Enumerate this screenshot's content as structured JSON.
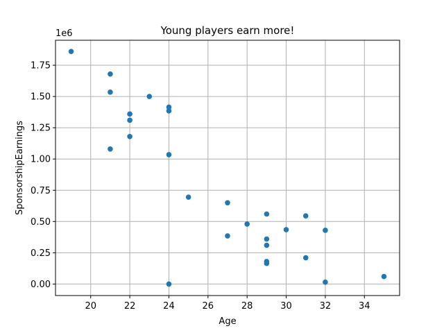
{
  "chart_data": {
    "type": "scatter",
    "title": "Young players earn more!",
    "xlabel": "Age",
    "ylabel": "SponsorshipEarnings",
    "y_offset_label": "1e6",
    "xlim": [
      18.2,
      35.8
    ],
    "ylim": [
      -92000,
      1950000
    ],
    "x_ticks": [
      20,
      22,
      24,
      26,
      28,
      30,
      32,
      34
    ],
    "y_ticks": [
      0,
      250000,
      500000,
      750000,
      1000000,
      1250000,
      1500000,
      1750000
    ],
    "y_tick_labels": [
      "0.00",
      "0.25",
      "0.50",
      "0.75",
      "1.00",
      "1.25",
      "1.50",
      "1.75"
    ],
    "grid": true,
    "marker_color": "#1f77b4",
    "points": [
      {
        "x": 19,
        "y": 1860000
      },
      {
        "x": 21,
        "y": 1680000
      },
      {
        "x": 21,
        "y": 1535000
      },
      {
        "x": 21,
        "y": 1080000
      },
      {
        "x": 22,
        "y": 1360000
      },
      {
        "x": 22,
        "y": 1310000
      },
      {
        "x": 22,
        "y": 1180000
      },
      {
        "x": 23,
        "y": 1500000
      },
      {
        "x": 24,
        "y": 1415000
      },
      {
        "x": 24,
        "y": 1385000
      },
      {
        "x": 24,
        "y": 1035000
      },
      {
        "x": 24,
        "y": 0
      },
      {
        "x": 25,
        "y": 695000
      },
      {
        "x": 27,
        "y": 650000
      },
      {
        "x": 27,
        "y": 385000
      },
      {
        "x": 28,
        "y": 480000
      },
      {
        "x": 29,
        "y": 560000
      },
      {
        "x": 29,
        "y": 360000
      },
      {
        "x": 29,
        "y": 310000
      },
      {
        "x": 29,
        "y": 180000
      },
      {
        "x": 29,
        "y": 165000
      },
      {
        "x": 30,
        "y": 435000
      },
      {
        "x": 31,
        "y": 545000
      },
      {
        "x": 31,
        "y": 210000
      },
      {
        "x": 32,
        "y": 430000
      },
      {
        "x": 32,
        "y": 15000
      },
      {
        "x": 35,
        "y": 60000
      }
    ]
  }
}
